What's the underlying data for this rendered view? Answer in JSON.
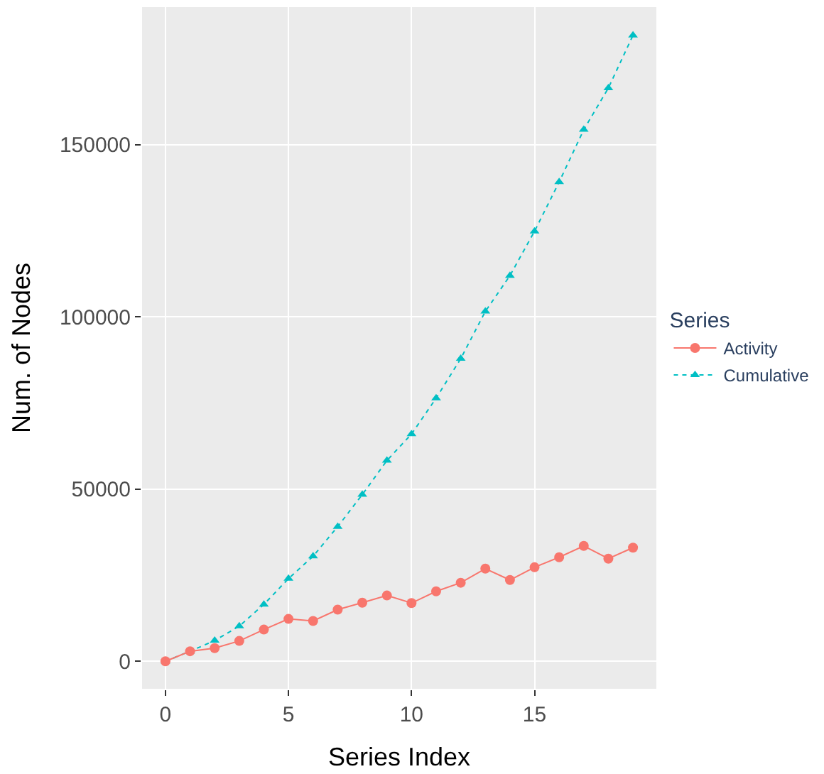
{
  "chart_data": {
    "type": "line",
    "xlabel": "Series Index",
    "ylabel": "Num. of Nodes",
    "legend_title": "Series",
    "legend": "right",
    "grid": true,
    "x": [
      0,
      1,
      2,
      3,
      4,
      5,
      6,
      7,
      8,
      9,
      10,
      11,
      12,
      13,
      14,
      15,
      16,
      17,
      18,
      19
    ],
    "xlim": [
      -0.95,
      19.95
    ],
    "xticks": [
      0,
      5,
      10,
      15
    ],
    "ylim": [
      -8000,
      190000
    ],
    "yticks": [
      0,
      50000,
      100000,
      150000
    ],
    "series": [
      {
        "name": "Activity",
        "color": "#f8766d",
        "marker": "circle",
        "line_style": "solid",
        "values": [
          0,
          2900,
          3800,
          5900,
          9200,
          12300,
          11700,
          15000,
          17000,
          19100,
          16900,
          20300,
          22800,
          26900,
          23600,
          27300,
          30200,
          33500,
          29800,
          33000
        ]
      },
      {
        "name": "Cumulative",
        "color": "#00bfc4",
        "marker": "triangle",
        "line_style": "dotted",
        "values": [
          0,
          2900,
          6000,
          10200,
          16500,
          24000,
          30500,
          39100,
          48400,
          58300,
          66000,
          76400,
          87900,
          101600,
          112000,
          124900,
          139200,
          154400,
          166500,
          181800
        ]
      }
    ]
  }
}
